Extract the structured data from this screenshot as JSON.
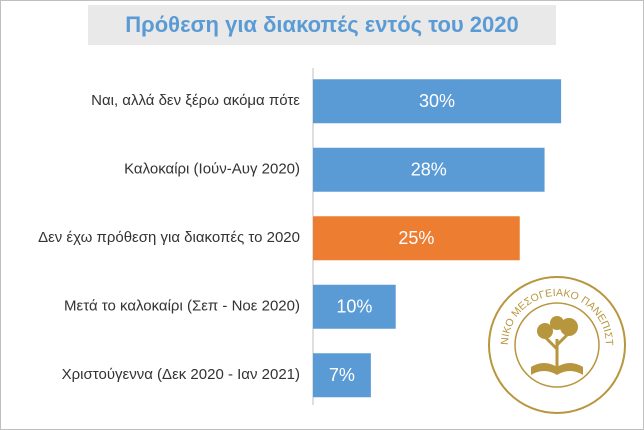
{
  "chart_data": {
    "type": "bar",
    "orientation": "horizontal",
    "title": "Πρόθεση για διακοπές εντός του 2020",
    "categories": [
      "Ναι, αλλά δεν ξέρω ακόμα πότε",
      "Καλοκαίρι (Ιούν-Αυγ 2020)",
      "Δεν έχω πρόθεση για διακοπές το 2020",
      "Μετά το καλοκαίρι (Σεπ - Νοε 2020)",
      "Χριστούγεννα (Δεκ 2020 - Ιαν 2021)"
    ],
    "values": [
      30,
      28,
      25,
      10,
      7
    ],
    "value_labels": [
      "30%",
      "28%",
      "25%",
      "10%",
      "7%"
    ],
    "colors": [
      "#5b9bd5",
      "#5b9bd5",
      "#ed7d31",
      "#5b9bd5",
      "#5b9bd5"
    ]
  },
  "logo": {
    "text": "ΕΛΛΗΝΙΚΟ ΜΕΣΟΓΕΙΑΚΟ ΠΑΝΕΠΙΣΤΗΜΙΟ"
  }
}
